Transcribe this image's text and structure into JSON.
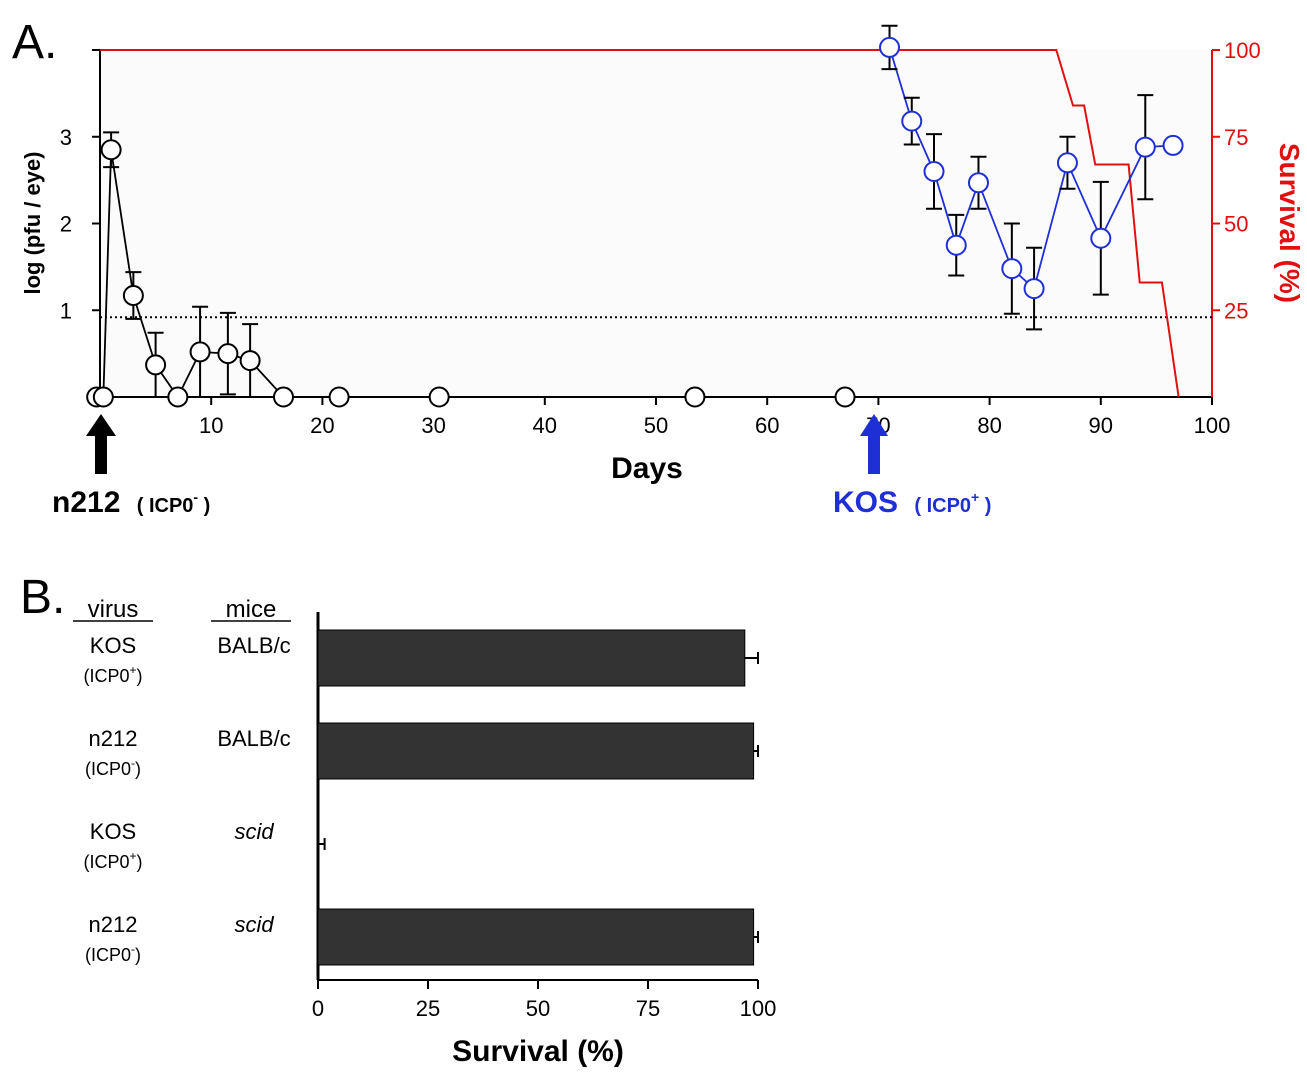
{
  "panel_a": {
    "label": "A.",
    "ylabel_left": "log (pfu / eye)",
    "ylabel_right": "Survival (%)",
    "xlabel": "Days",
    "arrow_n212": {
      "name": "n212",
      "tag": "ICP0",
      "sign": "-",
      "x_day": 0
    },
    "arrow_kos": {
      "name": "KOS",
      "tag": "ICP0",
      "sign": "+",
      "x_day": 69
    },
    "colors": {
      "black": "#000000",
      "blue": "#1f2fd6",
      "red": "#e01010",
      "plot_bg": "#fbfbfb"
    }
  },
  "panel_b": {
    "label": "B.",
    "col_virus": "virus",
    "col_mice": "mice",
    "xlabel": "Survival (%)",
    "rows": [
      {
        "virus": "KOS",
        "icp": "ICP0",
        "sign": "+",
        "mice": "BALB/c",
        "italic": false
      },
      {
        "virus": "n212",
        "icp": "ICP0",
        "sign": "-",
        "mice": "BALB/c",
        "italic": false
      },
      {
        "virus": "KOS",
        "icp": "ICP0",
        "sign": "+",
        "mice": "scid",
        "italic": true
      },
      {
        "virus": "n212",
        "icp": "ICP0",
        "sign": "-",
        "mice": "scid",
        "italic": true
      }
    ],
    "bar_color": "#333333"
  },
  "chart_data": [
    {
      "type": "line",
      "xlabel": "Days",
      "ylabel": "log (pfu / eye)",
      "xlim": [
        0,
        100
      ],
      "ylim": [
        0,
        4
      ],
      "xticks": [
        10,
        20,
        30,
        40,
        50,
        60,
        70,
        80,
        90,
        100
      ],
      "yticks": [
        1,
        2,
        3
      ],
      "detection_limit": 0.92,
      "series": [
        {
          "color": "#000000",
          "points": [
            {
              "x": -0.3,
              "y": 0
            },
            {
              "x": 0.3,
              "y": 0
            },
            {
              "x": 1,
              "y": 2.85,
              "err": 0.2
            },
            {
              "x": 3,
              "y": 1.17,
              "err": 0.27
            },
            {
              "x": 5,
              "y": 0.37,
              "err": 0.37
            },
            {
              "x": 7,
              "y": 0
            },
            {
              "x": 9,
              "y": 0.52,
              "err": 0.52
            },
            {
              "x": 11.5,
              "y": 0.5,
              "err": 0.47
            },
            {
              "x": 13.5,
              "y": 0.42,
              "err": 0.42
            },
            {
              "x": 16.5,
              "y": 0
            },
            {
              "x": 21.5,
              "y": 0
            },
            {
              "x": 30.5,
              "y": 0
            },
            {
              "x": 53.5,
              "y": 0
            },
            {
              "x": 67,
              "y": 0
            }
          ]
        },
        {
          "color": "#1f2fd6",
          "points": [
            {
              "x": 71,
              "y": 4.03,
              "err": 0.25
            },
            {
              "x": 73,
              "y": 3.18,
              "err": 0.27
            },
            {
              "x": 75,
              "y": 2.6,
              "err": 0.43
            },
            {
              "x": 77,
              "y": 1.75,
              "err": 0.35
            },
            {
              "x": 79,
              "y": 2.47,
              "err": 0.3
            },
            {
              "x": 82,
              "y": 1.48,
              "err": 0.52
            },
            {
              "x": 84,
              "y": 1.25,
              "err": 0.47
            },
            {
              "x": 87,
              "y": 2.7,
              "err": 0.3
            },
            {
              "x": 90,
              "y": 1.83,
              "err": 0.65
            },
            {
              "x": 94,
              "y": 2.88,
              "err": 0.6
            },
            {
              "x": 96.5,
              "y": 2.9,
              "err": 0.06
            }
          ]
        }
      ]
    },
    {
      "type": "line",
      "ylabel": "Survival (%)",
      "ylim": [
        0,
        100
      ],
      "yticks": [
        25,
        50,
        75,
        100
      ],
      "color": "#e01010",
      "step_points": [
        {
          "x": 0,
          "y": 100
        },
        {
          "x": 86,
          "y": 100
        },
        {
          "x": 87.5,
          "y": 84
        },
        {
          "x": 88.5,
          "y": 84
        },
        {
          "x": 89.5,
          "y": 67
        },
        {
          "x": 92.5,
          "y": 67
        },
        {
          "x": 93.5,
          "y": 33
        },
        {
          "x": 95.5,
          "y": 33
        },
        {
          "x": 97,
          "y": 0
        }
      ]
    },
    {
      "type": "bar",
      "orientation": "horizontal",
      "xlabel": "Survival (%)",
      "xlim": [
        0,
        100
      ],
      "xticks": [
        0,
        25,
        50,
        75,
        100
      ],
      "categories": [
        "KOS (ICP0+) BALB/c",
        "n212 (ICP0-) BALB/c",
        "KOS (ICP0+) scid",
        "n212 (ICP0-) scid"
      ],
      "values": [
        97,
        99,
        0,
        99
      ],
      "errors": [
        3,
        1,
        1.5,
        1
      ]
    }
  ]
}
